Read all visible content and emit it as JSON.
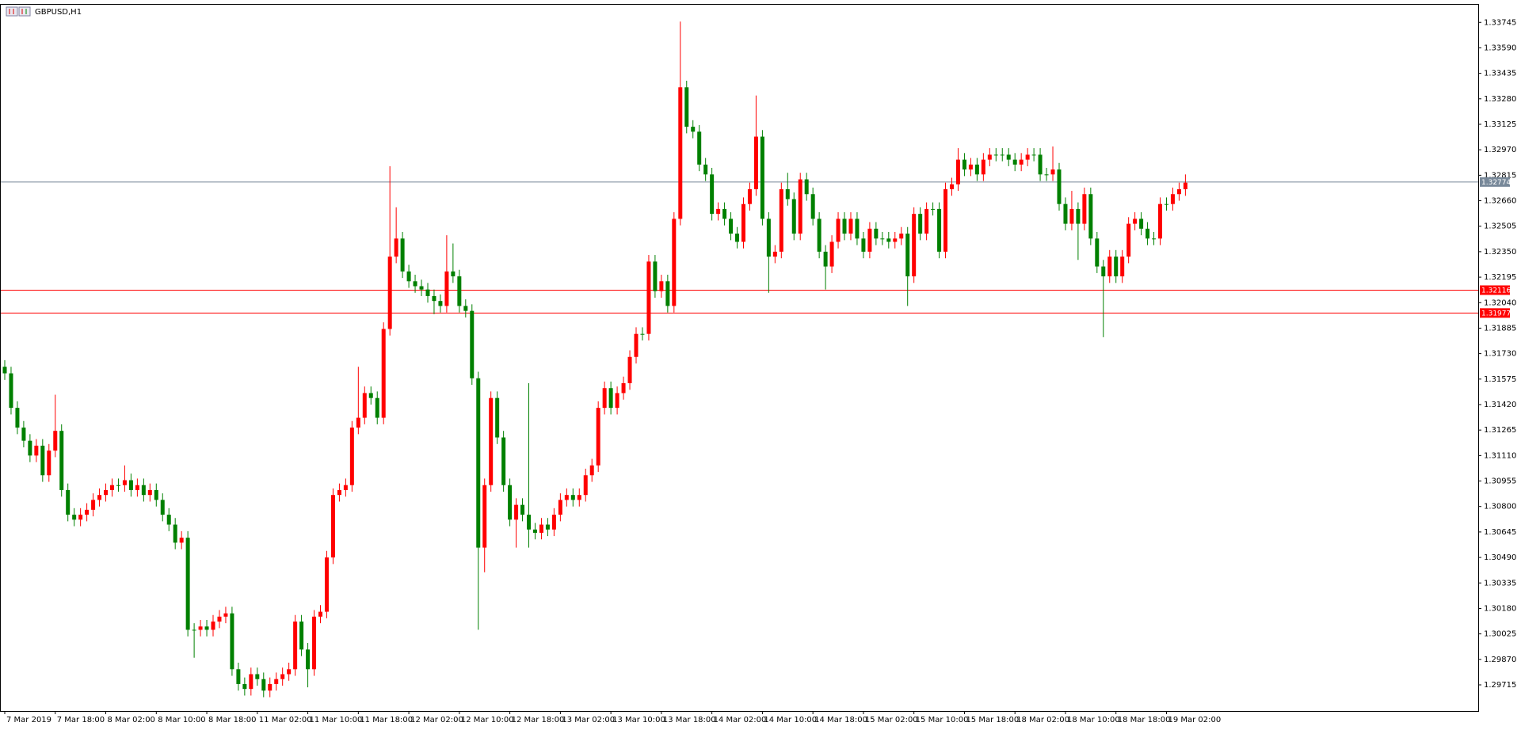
{
  "chart_data": {
    "type": "candlestick",
    "title": "GBPUSD,H1",
    "categories": [
      "7 Mar 2019",
      null,
      null,
      null,
      null,
      null,
      null,
      null,
      "7 Mar 18:00",
      null,
      null,
      null,
      null,
      null,
      null,
      null,
      "8 Mar 02:00",
      null,
      null,
      null,
      null,
      null,
      null,
      null,
      "8 Mar 10:00",
      null,
      null,
      null,
      null,
      null,
      null,
      null,
      "8 Mar 18:00",
      null,
      null,
      null,
      null,
      null,
      null,
      null,
      "11 Mar 02:00",
      null,
      null,
      null,
      null,
      null,
      null,
      null,
      "11 Mar 10:00",
      null,
      null,
      null,
      null,
      null,
      null,
      null,
      "11 Mar 18:00",
      null,
      null,
      null,
      null,
      null,
      null,
      null,
      "12 Mar 02:00",
      null,
      null,
      null,
      null,
      null,
      null,
      null,
      "12 Mar 10:00",
      null,
      null,
      null,
      null,
      null,
      null,
      null,
      "12 Mar 18:00",
      null,
      null,
      null,
      null,
      null,
      null,
      null,
      "13 Mar 02:00",
      null,
      null,
      null,
      null,
      null,
      null,
      null,
      "13 Mar 10:00",
      null,
      null,
      null,
      null,
      null,
      null,
      null,
      "13 Mar 18:00",
      null,
      null,
      null,
      null,
      null,
      null,
      null,
      "14 Mar 02:00",
      null,
      null,
      null,
      null,
      null,
      null,
      null,
      "14 Mar 10:00",
      null,
      null,
      null,
      null,
      null,
      null,
      null,
      "14 Mar 18:00",
      null,
      null,
      null,
      null,
      null,
      null,
      null,
      "15 Mar 02:00",
      null,
      null,
      null,
      null,
      null,
      null,
      null,
      "15 Mar 10:00",
      null,
      null,
      null,
      null,
      null,
      null,
      null,
      "15 Mar 18:00",
      null,
      null,
      null,
      null,
      null,
      null,
      null,
      "18 Mar 02:00",
      null,
      null,
      null,
      null,
      null,
      null,
      null,
      "18 Mar 10:00",
      null,
      null,
      null,
      null,
      null,
      null,
      null,
      "18 Mar 18:00",
      null,
      null,
      null,
      null,
      null,
      null,
      null,
      "19 Mar 02:00",
      null,
      null,
      null
    ],
    "open": [
      1.3165,
      1.3161,
      1.314,
      1.3128,
      1.312,
      1.3111,
      1.3117,
      1.3099,
      1.3114,
      1.3126,
      1.309,
      1.3075,
      1.3072,
      1.3075,
      1.3078,
      1.3084,
      1.3087,
      1.309,
      1.3093,
      1.3093,
      1.3096,
      1.309,
      1.3093,
      1.3087,
      1.309,
      1.3084,
      1.3075,
      1.3069,
      1.3058,
      1.3061,
      1.3005,
      1.3005,
      1.3007,
      1.3005,
      1.301,
      1.3013,
      1.3015,
      1.2981,
      1.2972,
      1.2969,
      1.2978,
      1.2975,
      1.2968,
      1.2972,
      1.2975,
      1.2978,
      1.2981,
      1.301,
      1.2993,
      1.2981,
      1.3013,
      1.3016,
      1.3049,
      1.3087,
      1.309,
      1.3093,
      1.3128,
      1.3134,
      1.3149,
      1.3146,
      1.3134,
      1.3188,
      1.3232,
      1.3243,
      1.3223,
      1.3217,
      1.3214,
      1.3212,
      1.3208,
      1.3205,
      1.3202,
      1.3223,
      1.322,
      1.3202,
      1.3199,
      1.3158,
      1.3055,
      1.3093,
      1.3146,
      1.3122,
      1.3093,
      1.3072,
      1.3081,
      1.3075,
      1.3066,
      1.3064,
      1.3069,
      1.3066,
      1.3075,
      1.3084,
      1.3087,
      1.3084,
      1.3087,
      1.3099,
      1.3105,
      1.314,
      1.3152,
      1.314,
      1.3149,
      1.3155,
      1.3171,
      1.3185,
      1.3185,
      1.3229,
      1.3211,
      1.3217,
      1.3202,
      1.3255,
      1.3335,
      1.3311,
      1.3308,
      1.3288,
      1.3282,
      1.3258,
      1.3261,
      1.3255,
      1.3246,
      1.3241,
      1.3264,
      1.3273,
      1.3305,
      1.3255,
      1.3232,
      1.3235,
      1.3273,
      1.3267,
      1.3246,
      1.3279,
      1.327,
      1.3255,
      1.3235,
      1.3226,
      1.3241,
      1.3255,
      1.3246,
      1.3255,
      1.3243,
      1.3235,
      1.3249,
      1.3243,
      1.3243,
      1.3241,
      1.3243,
      1.3246,
      1.322,
      1.3258,
      1.3246,
      1.3261,
      1.3261,
      1.3235,
      1.3273,
      1.3276,
      1.3291,
      1.3285,
      1.3288,
      1.3282,
      1.3291,
      1.3294,
      1.3294,
      1.3294,
      1.3291,
      1.3288,
      1.3291,
      1.3294,
      1.3294,
      1.3282,
      1.3282,
      1.3285,
      1.3264,
      1.3252,
      1.3261,
      1.3252,
      1.327,
      1.3243,
      1.3226,
      1.322,
      1.3232,
      1.322,
      1.3232,
      1.3252,
      1.3255,
      1.3249,
      1.3243,
      1.3243,
      1.3264,
      1.3264,
      1.327,
      1.3273
    ],
    "high": [
      1.3169,
      1.3165,
      1.3144,
      1.3132,
      1.3124,
      1.3121,
      1.3121,
      1.3118,
      1.3148,
      1.313,
      1.3094,
      1.3079,
      1.3079,
      1.3082,
      1.3088,
      1.3091,
      1.3094,
      1.3097,
      1.3097,
      1.3105,
      1.31,
      1.3097,
      1.3097,
      1.3094,
      1.3094,
      1.3088,
      1.3079,
      1.3073,
      1.3065,
      1.3065,
      1.3009,
      1.3011,
      1.3011,
      1.3014,
      1.3017,
      1.3019,
      1.3019,
      1.2985,
      1.2976,
      1.2982,
      1.2982,
      1.2979,
      1.2976,
      1.2979,
      1.2982,
      1.2985,
      1.3014,
      1.3014,
      1.2997,
      1.3017,
      1.302,
      1.3053,
      1.3091,
      1.3094,
      1.3097,
      1.3132,
      1.3165,
      1.3153,
      1.3153,
      1.315,
      1.3192,
      1.3287,
      1.3262,
      1.3247,
      1.3227,
      1.3221,
      1.3218,
      1.3216,
      1.3212,
      1.3209,
      1.3245,
      1.324,
      1.3224,
      1.3206,
      1.3203,
      1.3162,
      1.3097,
      1.315,
      1.315,
      1.3126,
      1.3097,
      1.3085,
      1.3085,
      1.3155,
      1.307,
      1.3073,
      1.3073,
      1.3079,
      1.3088,
      1.3091,
      1.3091,
      1.3091,
      1.3103,
      1.3109,
      1.3144,
      1.3156,
      1.3156,
      1.3153,
      1.3159,
      1.3175,
      1.3189,
      1.3189,
      1.3233,
      1.3233,
      1.3221,
      1.3221,
      1.3259,
      1.3375,
      1.3339,
      1.3315,
      1.3312,
      1.3292,
      1.3286,
      1.3265,
      1.3265,
      1.3259,
      1.325,
      1.3268,
      1.3277,
      1.333,
      1.3309,
      1.3259,
      1.3239,
      1.3277,
      1.3283,
      1.3271,
      1.3283,
      1.3283,
      1.3274,
      1.3259,
      1.3239,
      1.3245,
      1.3259,
      1.3259,
      1.3259,
      1.3259,
      1.3247,
      1.3253,
      1.3253,
      1.3247,
      1.3247,
      1.3247,
      1.325,
      1.325,
      1.3262,
      1.3262,
      1.3265,
      1.3265,
      1.3265,
      1.3277,
      1.328,
      1.3298,
      1.3295,
      1.3292,
      1.3292,
      1.3295,
      1.3298,
      1.3298,
      1.3298,
      1.3298,
      1.3295,
      1.3295,
      1.3298,
      1.3298,
      1.3298,
      1.3286,
      1.3299,
      1.3289,
      1.3268,
      1.3272,
      1.3265,
      1.3274,
      1.3274,
      1.3247,
      1.323,
      1.3236,
      1.3236,
      1.3236,
      1.3256,
      1.3259,
      1.3259,
      1.3253,
      1.3247,
      1.3268,
      1.3268,
      1.3274,
      1.3277,
      1.3282
    ],
    "low": [
      1.3157,
      1.3136,
      1.3124,
      1.3116,
      1.3107,
      1.3107,
      1.3095,
      1.3095,
      1.311,
      1.3086,
      1.3071,
      1.3068,
      1.3068,
      1.3071,
      1.3074,
      1.308,
      1.3083,
      1.3086,
      1.3089,
      1.3089,
      1.3086,
      1.3086,
      1.3083,
      1.3083,
      1.308,
      1.3071,
      1.3065,
      1.3054,
      1.3054,
      1.3001,
      1.2988,
      1.3001,
      1.3001,
      1.3001,
      1.3006,
      1.3009,
      1.2977,
      1.2968,
      1.2965,
      1.2965,
      1.2971,
      1.2964,
      1.2964,
      1.2968,
      1.2971,
      1.2974,
      1.2977,
      1.2989,
      1.297,
      1.2977,
      1.3009,
      1.3012,
      1.3045,
      1.3083,
      1.3086,
      1.3089,
      1.3124,
      1.313,
      1.3142,
      1.313,
      1.313,
      1.3184,
      1.3228,
      1.3219,
      1.3213,
      1.321,
      1.3208,
      1.3204,
      1.3197,
      1.3198,
      1.3198,
      1.3216,
      1.3198,
      1.3195,
      1.3154,
      1.3005,
      1.304,
      1.3089,
      1.3118,
      1.3089,
      1.3068,
      1.3055,
      1.3071,
      1.3055,
      1.306,
      1.306,
      1.3062,
      1.3062,
      1.3071,
      1.308,
      1.308,
      1.308,
      1.3083,
      1.3095,
      1.3101,
      1.3136,
      1.3136,
      1.3136,
      1.3145,
      1.3151,
      1.3167,
      1.3181,
      1.3181,
      1.3207,
      1.3207,
      1.3198,
      1.3198,
      1.3251,
      1.3307,
      1.3304,
      1.3284,
      1.3278,
      1.3254,
      1.3254,
      1.3251,
      1.3242,
      1.3237,
      1.3237,
      1.326,
      1.3269,
      1.3251,
      1.321,
      1.3228,
      1.3231,
      1.3263,
      1.3242,
      1.3242,
      1.3266,
      1.3251,
      1.3231,
      1.3212,
      1.3222,
      1.3237,
      1.3242,
      1.3242,
      1.3239,
      1.3231,
      1.3231,
      1.3239,
      1.3239,
      1.3237,
      1.3237,
      1.3239,
      1.3202,
      1.3216,
      1.3242,
      1.3242,
      1.3257,
      1.3231,
      1.3231,
      1.3269,
      1.3272,
      1.3281,
      1.3281,
      1.3278,
      1.3278,
      1.3287,
      1.329,
      1.329,
      1.3287,
      1.3284,
      1.3284,
      1.3287,
      1.329,
      1.3278,
      1.3278,
      1.3278,
      1.326,
      1.3248,
      1.3248,
      1.323,
      1.3248,
      1.3239,
      1.3222,
      1.3183,
      1.3216,
      1.3216,
      1.3216,
      1.3228,
      1.3248,
      1.3245,
      1.3239,
      1.3239,
      1.3239,
      1.326,
      1.326,
      1.3266,
      1.3269
    ],
    "close": [
      1.3161,
      1.314,
      1.3128,
      1.312,
      1.3111,
      1.3117,
      1.3099,
      1.3114,
      1.3126,
      1.309,
      1.3075,
      1.3072,
      1.3075,
      1.3078,
      1.3084,
      1.3087,
      1.309,
      1.3093,
      1.3093,
      1.3096,
      1.309,
      1.3093,
      1.3087,
      1.309,
      1.3084,
      1.3075,
      1.3069,
      1.3058,
      1.3061,
      1.3005,
      1.3005,
      1.3007,
      1.3005,
      1.301,
      1.3013,
      1.3015,
      1.2981,
      1.2972,
      1.2969,
      1.2978,
      1.2975,
      1.2968,
      1.2972,
      1.2975,
      1.2978,
      1.2981,
      1.301,
      1.2993,
      1.2981,
      1.3013,
      1.3016,
      1.3049,
      1.3087,
      1.309,
      1.3093,
      1.3128,
      1.3134,
      1.3149,
      1.3146,
      1.3134,
      1.3188,
      1.3232,
      1.3243,
      1.3223,
      1.3217,
      1.3214,
      1.3212,
      1.3208,
      1.3205,
      1.3202,
      1.3223,
      1.322,
      1.3202,
      1.3199,
      1.3158,
      1.3055,
      1.3093,
      1.3146,
      1.3122,
      1.3093,
      1.3072,
      1.3081,
      1.3075,
      1.3066,
      1.3064,
      1.3069,
      1.3066,
      1.3075,
      1.3084,
      1.3087,
      1.3084,
      1.3087,
      1.3099,
      1.3105,
      1.314,
      1.3152,
      1.314,
      1.3149,
      1.3155,
      1.3171,
      1.3185,
      1.3185,
      1.3229,
      1.3211,
      1.3217,
      1.3202,
      1.3255,
      1.3335,
      1.3311,
      1.3308,
      1.3288,
      1.3282,
      1.3258,
      1.3261,
      1.3255,
      1.3246,
      1.3241,
      1.3264,
      1.3273,
      1.3305,
      1.3255,
      1.3232,
      1.3235,
      1.3273,
      1.3267,
      1.3246,
      1.3279,
      1.327,
      1.3255,
      1.3235,
      1.3226,
      1.3241,
      1.3255,
      1.3246,
      1.3255,
      1.3243,
      1.3235,
      1.3249,
      1.3243,
      1.3243,
      1.3241,
      1.3243,
      1.3246,
      1.322,
      1.3258,
      1.3246,
      1.3261,
      1.3261,
      1.3235,
      1.3273,
      1.3276,
      1.3291,
      1.3285,
      1.3288,
      1.3282,
      1.3291,
      1.3294,
      1.3294,
      1.3294,
      1.3291,
      1.3288,
      1.3291,
      1.3294,
      1.3294,
      1.3282,
      1.3282,
      1.3285,
      1.3264,
      1.3252,
      1.3261,
      1.3252,
      1.327,
      1.3243,
      1.3226,
      1.322,
      1.3232,
      1.322,
      1.3232,
      1.3252,
      1.3255,
      1.3249,
      1.3243,
      1.3243,
      1.3264,
      1.3264,
      1.327,
      1.3273,
      1.3277
    ],
    "up_color": "#ff0000",
    "down_color": "#008000",
    "ylim": [
      1.29556,
      1.33857
    ],
    "yticks": [
      1.29715,
      {
        "value": 1.2987,
        "label": "1.29870"
      },
      1.30025,
      {
        "value": 1.3018,
        "label": "1.30180"
      },
      1.30335,
      {
        "value": 1.3049,
        "label": "1.30490"
      },
      1.30645,
      {
        "value": 1.308,
        "label": "1.30800"
      },
      1.30955,
      {
        "value": 1.3111,
        "label": "1.31110"
      },
      1.31265,
      {
        "value": 1.3142,
        "label": "1.31420"
      },
      1.31575,
      {
        "value": 1.3173,
        "label": "1.31730"
      },
      1.31885,
      {
        "value": 1.3204,
        "label": "1.32040"
      },
      1.32195,
      {
        "value": 1.3235,
        "label": "1.32350"
      },
      1.32505,
      {
        "value": 1.3266,
        "label": "1.32660"
      },
      1.32815,
      {
        "value": 1.3297,
        "label": "1.32970"
      },
      1.33125,
      {
        "value": 1.3328,
        "label": "1.33280"
      },
      1.33435,
      {
        "value": 1.3359,
        "label": "1.33590"
      },
      1.33745
    ],
    "hlines": [
      {
        "value": 1.32774,
        "color": "#778899"
      },
      {
        "value": 1.32116,
        "color": "#ff0000"
      },
      {
        "value": 1.31977,
        "color": "#ff0000"
      }
    ]
  }
}
